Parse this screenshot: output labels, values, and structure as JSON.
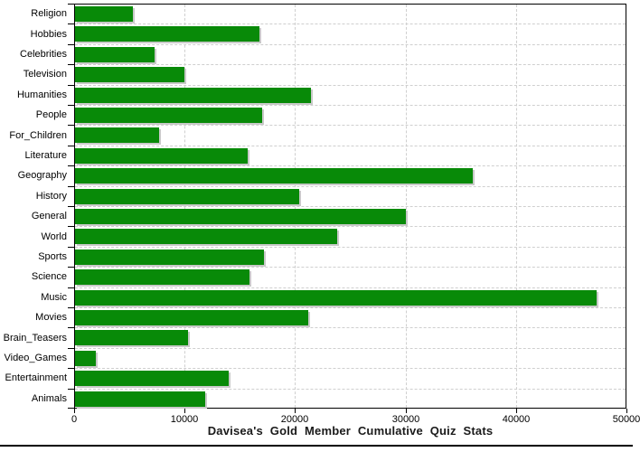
{
  "chart_data": {
    "type": "bar",
    "orientation": "horizontal",
    "title": "Davisea's Gold Member Cumulative Quiz Stats",
    "categories": [
      "Religion",
      "Hobbies",
      "Celebrities",
      "Television",
      "Humanities",
      "People",
      "For_Children",
      "Literature",
      "Geography",
      "History",
      "General",
      "World",
      "Sports",
      "Science",
      "Music",
      "Movies",
      "Brain_Teasers",
      "Video_Games",
      "Entertainment",
      "Animals"
    ],
    "values": [
      5300,
      16800,
      7300,
      10000,
      21400,
      17000,
      7700,
      15700,
      36100,
      20400,
      30000,
      23800,
      17200,
      15900,
      47300,
      21200,
      10300,
      2000,
      14000,
      11900
    ],
    "xlim": [
      0,
      50000
    ],
    "x_ticks": [
      0,
      10000,
      20000,
      30000,
      40000,
      50000
    ],
    "x_tick_labels": [
      "0",
      "10000",
      "20000",
      "30000",
      "40000",
      "50000"
    ],
    "grid": "dashed",
    "legend": "none"
  },
  "colors": {
    "bar": "#088A08",
    "bar_shadow": "#c9c9c9",
    "grid": "#cfcfcf",
    "axis": "#000000",
    "title_text": "#1a1a1a",
    "label_text": "#000000"
  }
}
